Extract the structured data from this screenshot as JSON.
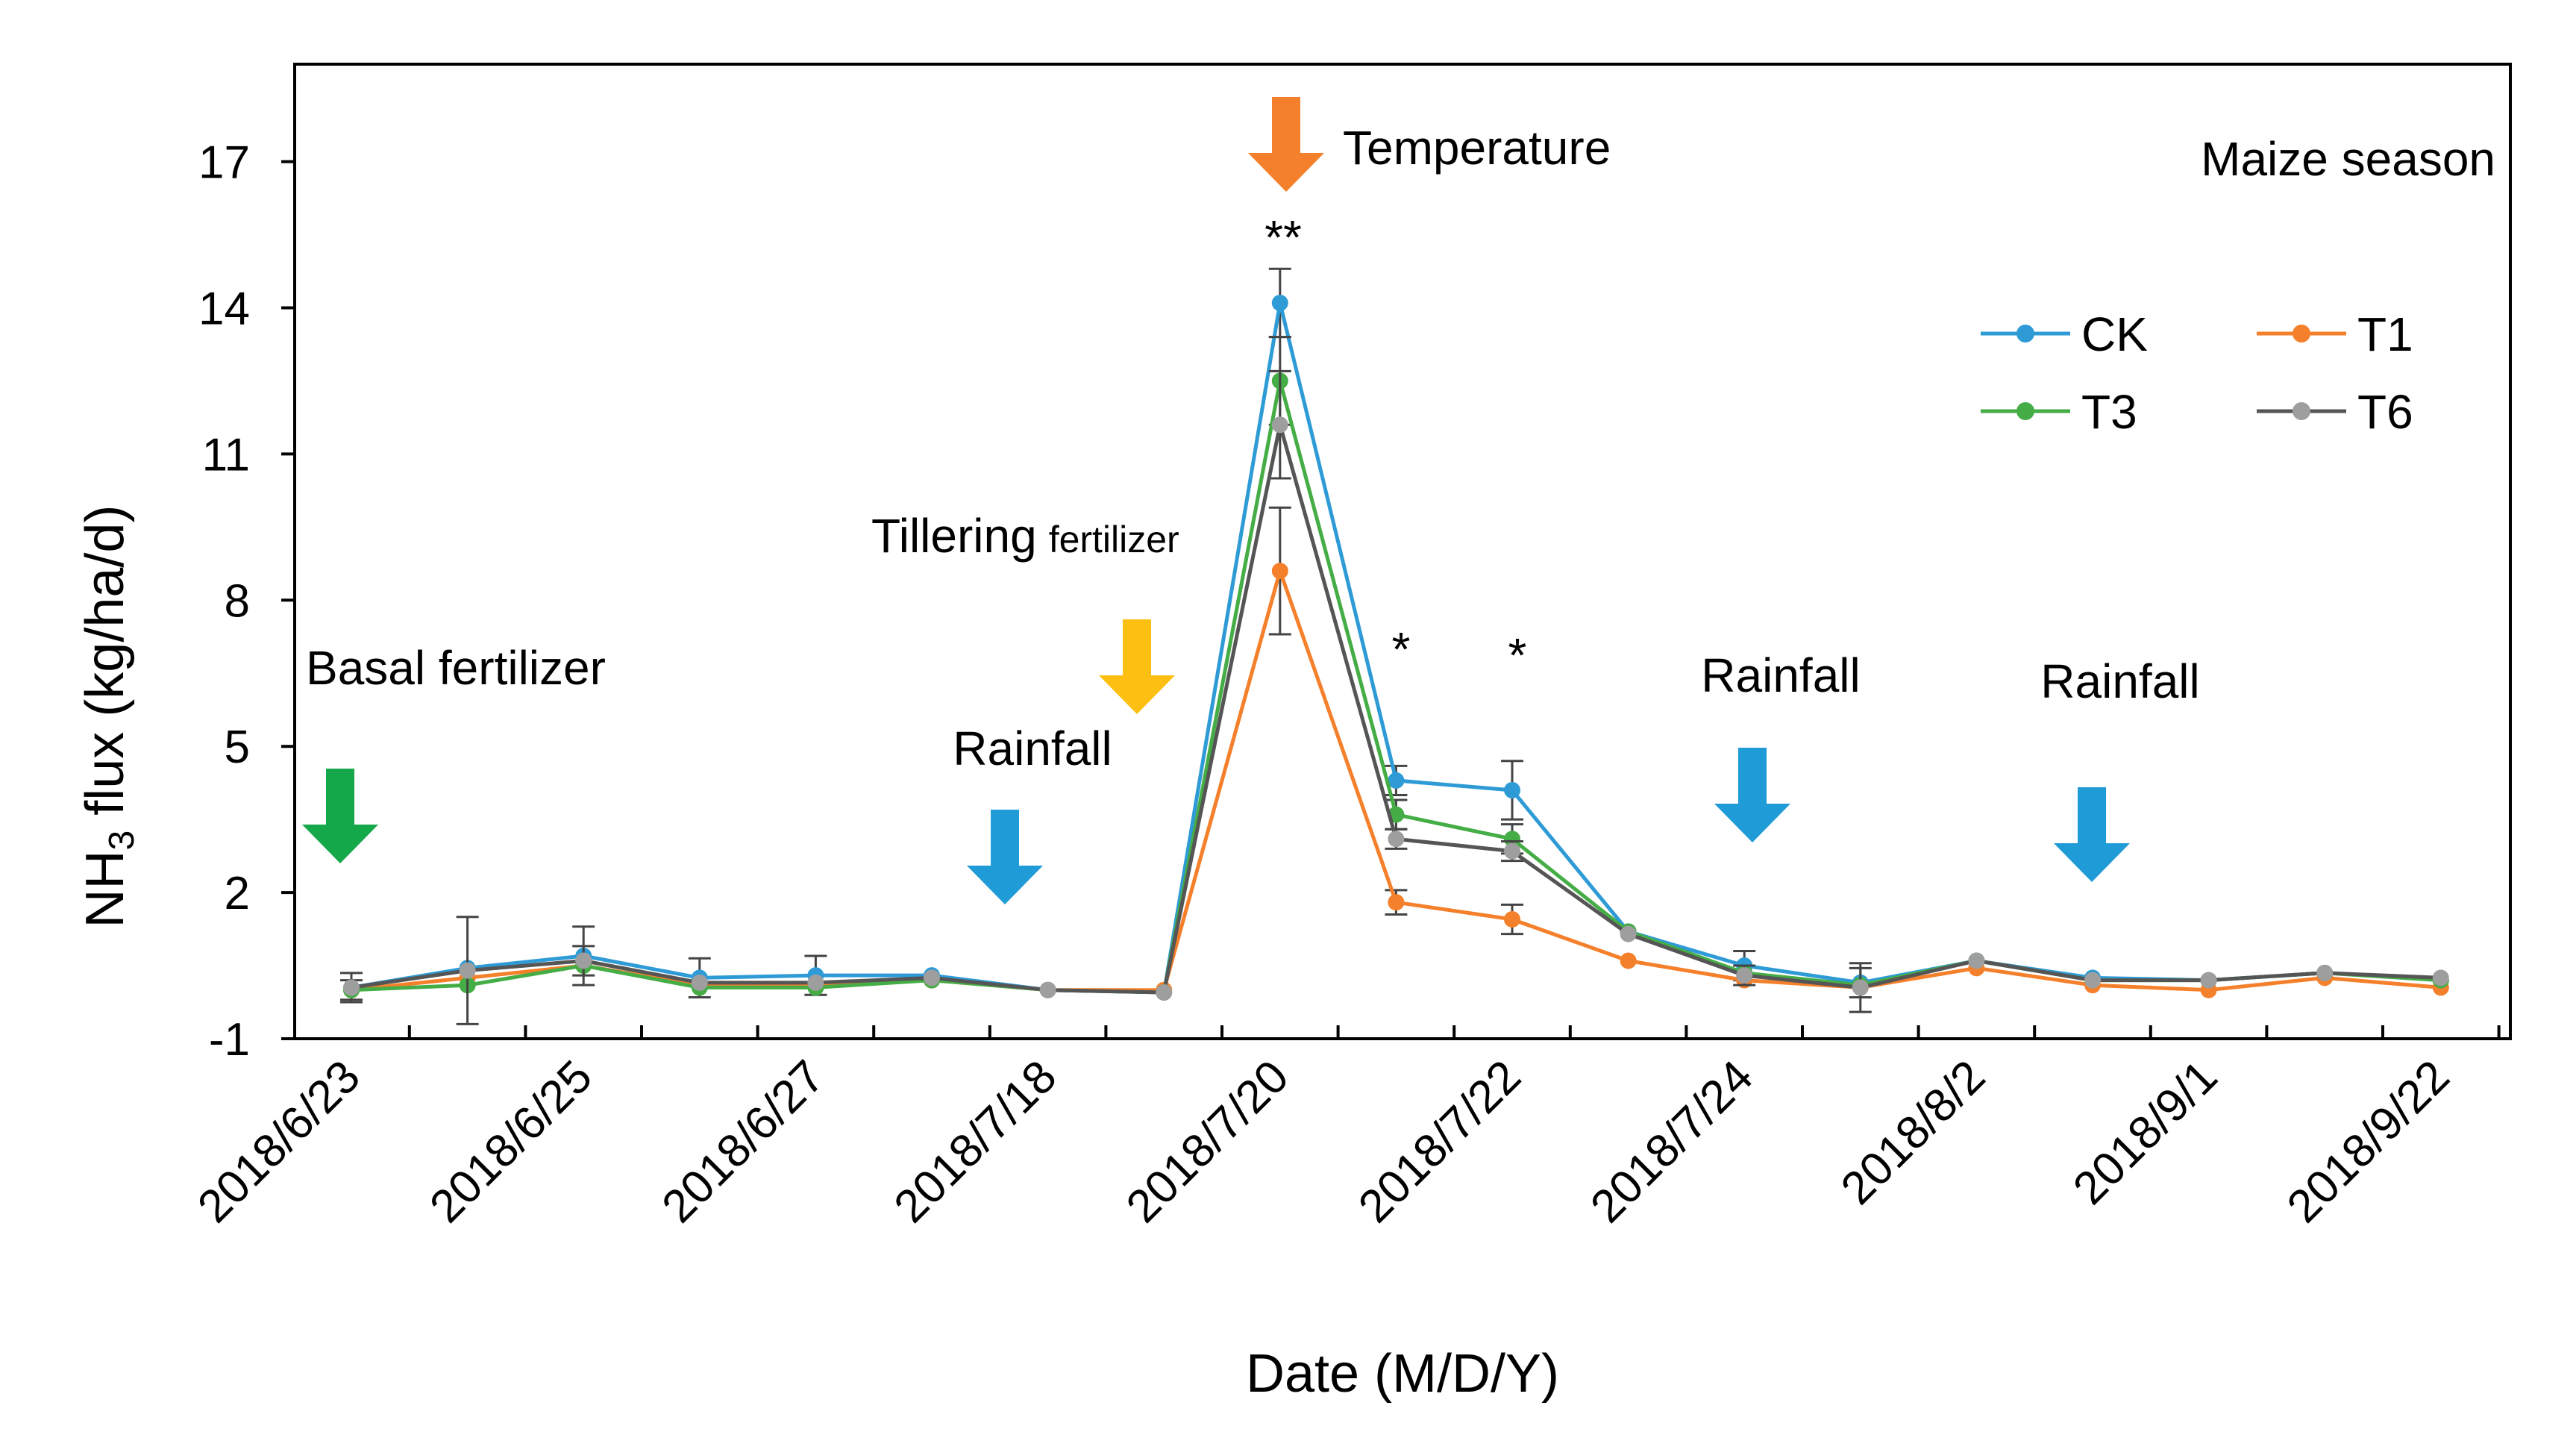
{
  "chart_data": {
    "type": "line",
    "title": "",
    "season_label": "Maize season",
    "xlabel": "Date (M/D/Y)",
    "ylabel": {
      "main": "NH",
      "sub": "3",
      "rest": " flux (kg/ha/d)"
    },
    "ylim": [
      -1,
      19
    ],
    "yticks": [
      -1,
      2,
      5,
      8,
      11,
      14,
      17
    ],
    "categories": [
      "2018/6/23",
      "",
      "2018/6/25",
      "",
      "2018/6/27",
      "",
      "2018/7/18",
      "",
      "2018/7/20",
      "",
      "2018/7/22",
      "",
      "2018/7/24",
      "",
      "2018/8/2",
      "",
      "2018/9/1",
      "",
      "2018/9/22"
    ],
    "x_tick_labels": [
      "2018/6/23",
      "2018/6/25",
      "2018/6/27",
      "2018/7/18",
      "2018/7/20",
      "2018/7/22",
      "2018/7/24",
      "2018/8/2",
      "2018/9/1",
      "2018/9/22"
    ],
    "series": [
      {
        "name": "CK",
        "color": "#2E9BD6",
        "values": [
          0.05,
          0.45,
          0.7,
          0.25,
          0.3,
          0.3,
          0.0,
          -0.05,
          14.1,
          4.3,
          4.1,
          1.2,
          0.5,
          0.15,
          0.6,
          0.25,
          0.2,
          0.35,
          0.2
        ],
        "errors": [
          0.3,
          0.0,
          0.6,
          0.4,
          0.4,
          0.0,
          0.0,
          0.0,
          0.7,
          0.3,
          0.6,
          0.0,
          0.3,
          0.3,
          0.0,
          0.0,
          0.0,
          0.0,
          0.0
        ]
      },
      {
        "name": "T1",
        "color": "#F5802B",
        "values": [
          0.0,
          0.25,
          0.5,
          0.1,
          0.1,
          0.2,
          0.0,
          0.0,
          8.6,
          1.8,
          1.45,
          0.6,
          0.2,
          0.05,
          0.45,
          0.1,
          0.0,
          0.25,
          0.05
        ],
        "errors": [
          0.2,
          0.0,
          0.0,
          0.0,
          0.0,
          0.0,
          0.0,
          0.0,
          1.3,
          0.25,
          0.3,
          0.0,
          0.0,
          0.0,
          0.0,
          0.0,
          0.0,
          0.0,
          0.0
        ]
      },
      {
        "name": "T3",
        "color": "#45AD45",
        "values": [
          0.0,
          0.1,
          0.5,
          0.05,
          0.05,
          0.2,
          0.0,
          -0.05,
          12.5,
          3.6,
          3.1,
          1.2,
          0.35,
          0.1,
          0.6,
          0.2,
          0.2,
          0.35,
          0.2
        ],
        "errors": [
          0.0,
          0.0,
          0.0,
          0.0,
          0.0,
          0.0,
          0.0,
          0.0,
          0.9,
          0.3,
          0.3,
          0.0,
          0.0,
          0.0,
          0.0,
          0.0,
          0.0,
          0.0,
          0.0
        ]
      },
      {
        "name": "T6",
        "color": "#9E9E9E",
        "line_color": "#555555",
        "values": [
          0.05,
          0.4,
          0.6,
          0.15,
          0.15,
          0.25,
          0.0,
          -0.05,
          11.6,
          3.1,
          2.85,
          1.15,
          0.3,
          0.05,
          0.6,
          0.2,
          0.2,
          0.35,
          0.25
        ],
        "errors": [
          0.0,
          1.1,
          0.3,
          0.0,
          0.0,
          0.0,
          0.0,
          0.0,
          1.1,
          0.2,
          0.2,
          0.0,
          0.2,
          0.5,
          0.0,
          0.0,
          0.0,
          0.0,
          0.0
        ]
      }
    ],
    "annotations": {
      "basal": {
        "text": "Basal fertilizer",
        "color": "#14A84A"
      },
      "tillering": {
        "text_main": "Tillering",
        "text_small": "fertilizer",
        "color": "#FDBF12"
      },
      "temperature": {
        "text": "Temperature",
        "color": "#F5802B"
      },
      "rainfall_text": "Rainfall",
      "rainfall_color": "#1F9BD7",
      "sig_double": "**",
      "sig_single": "*"
    }
  }
}
